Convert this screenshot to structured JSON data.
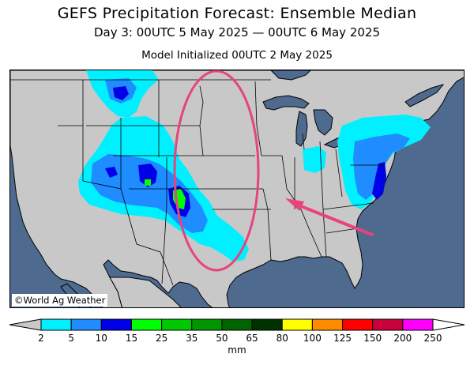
{
  "header": {
    "title": "GEFS Precipitation Forecast: Ensemble Median",
    "period": "Day 3: 00UTC 5 May 2025 — 00UTC 6 May 2025",
    "init": "Model Initialized 00UTC 2 May 2025"
  },
  "map": {
    "copyright": "©World Ag Weather",
    "colors": {
      "ocean": "#4e6a8e",
      "land": "#c8c8c8",
      "borders": "#000000",
      "highlight": "#e8437e"
    },
    "annotations": [
      "highlight-ellipse",
      "arrow"
    ]
  },
  "legend": {
    "unit": "mm",
    "ticks": [
      "2",
      "5",
      "10",
      "15",
      "25",
      "35",
      "50",
      "65",
      "80",
      "100",
      "125",
      "150",
      "200",
      "250"
    ],
    "colors": [
      "#00f0ff",
      "#1f8cff",
      "#0000e6",
      "#00ff00",
      "#00c800",
      "#009600",
      "#006400",
      "#003200",
      "#ffff00",
      "#ff8c00",
      "#ff0000",
      "#c8003c",
      "#ff00ff",
      "#9955dd"
    ],
    "under_color": "#c8c8c8",
    "over_color": "#ffffff"
  }
}
